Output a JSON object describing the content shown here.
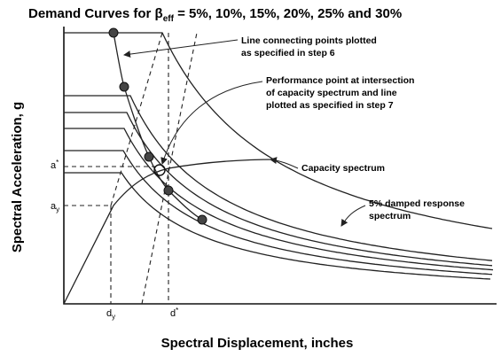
{
  "title": {
    "before": "Demand Curves for β",
    "sub": "eff",
    "after": " = 5%, 10%, 15%, 20%, 25% and  30%"
  },
  "y_axis_label": "Spectral Acceleration, g",
  "x_axis_label": "Spectral Displacement, inches",
  "annotations": {
    "connecting_line": [
      "Line connecting points plotted",
      "as specified in step 6"
    ],
    "performance_point": [
      "Performance point at intersection",
      "of capacity spectrum and line",
      "plotted as specified in step 7"
    ],
    "capacity_spectrum": "Capacity spectrum",
    "response_spectrum": [
      "5% damped response",
      "spectrum"
    ]
  },
  "markers": {
    "a_star": {
      "base": "a",
      "mod": "*"
    },
    "a_y": {
      "base": "a",
      "mod": "y"
    },
    "d_y": {
      "base": "d",
      "mod": "y"
    },
    "d_star": {
      "base": "d",
      "mod": "*"
    }
  }
}
